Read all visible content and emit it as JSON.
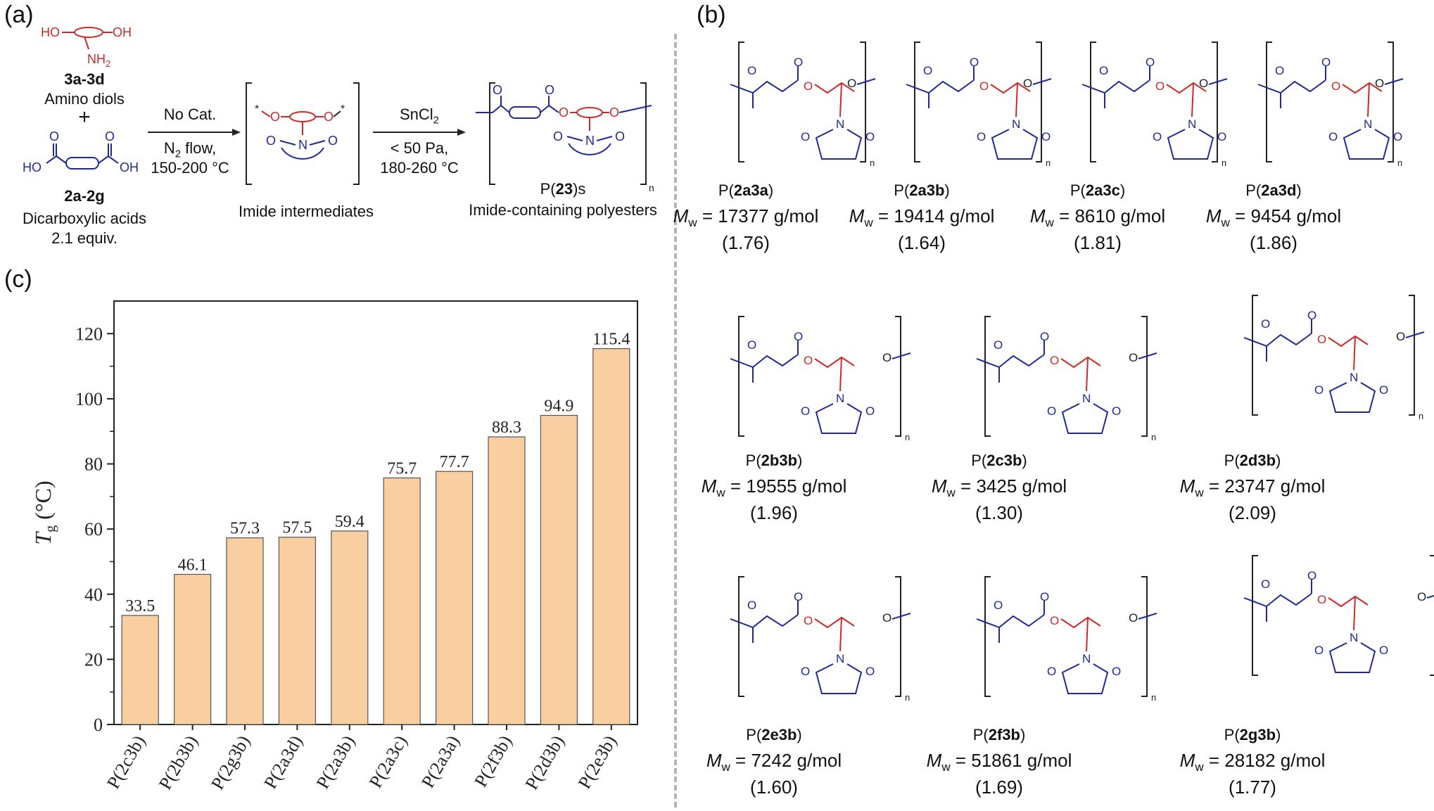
{
  "panels": {
    "a": "(a)",
    "b": "(b)",
    "c": "(c)"
  },
  "scheme": {
    "diol_code": "3a-3d",
    "diol_name": "Amino diols",
    "plus": "+",
    "acid_code": "2a-2g",
    "acid_name": "Dicarboxylic acids",
    "acid_equiv": "2.1 equiv.",
    "step1_line1": "No Cat.",
    "step1_line2": "N",
    "step1_line2_sub": "2",
    "step1_line2_rest": " flow,",
    "step1_line3": "150-200 °C",
    "intermediate": "Imide intermediates",
    "step2_line1": "SnCl",
    "step2_line1_sub": "2",
    "step2_line2": "< 50 Pa,",
    "step2_line3": "180-260 °C",
    "product_code_pre": "P(",
    "product_code_bold": "23",
    "product_code_post": ")s",
    "product_name": "Imide-containing polyesters",
    "atoms": {
      "HO": "HO",
      "OH": "OH",
      "NH2": "NH",
      "NH2_sub": "2",
      "O": "O",
      "N": "N",
      "star": "*",
      "n": "n"
    }
  },
  "polymers": [
    {
      "code": "2a3a",
      "mw": "17377 g/mol",
      "pdi": "(1.76)"
    },
    {
      "code": "2a3b",
      "mw": "19414 g/mol",
      "pdi": "(1.64)"
    },
    {
      "code": "2a3c",
      "mw": "8610 g/mol",
      "pdi": "(1.81)"
    },
    {
      "code": "2a3d",
      "mw": "9454 g/mol",
      "pdi": "(1.86)"
    },
    {
      "code": "2b3b",
      "mw": "19555 g/mol",
      "pdi": "(1.96)"
    },
    {
      "code": "2c3b",
      "mw": "3425 g/mol",
      "pdi": "(1.30)"
    },
    {
      "code": "2d3b",
      "mw": "23747 g/mol",
      "pdi": "(2.09)"
    },
    {
      "code": "2e3b",
      "mw": "7242 g/mol",
      "pdi": "(1.60)"
    },
    {
      "code": "2f3b",
      "mw": "51861 g/mol",
      "pdi": "(1.69)"
    },
    {
      "code": "2g3b",
      "mw": "28182 g/mol",
      "pdi": "(1.77)"
    }
  ],
  "mw_label": "M",
  "mw_sub": "w",
  "mw_eq": " = ",
  "cap_pre": "P(",
  "cap_post": ")",
  "chart_data": {
    "type": "bar",
    "categories": [
      "P(2c3b)",
      "P(2b3b)",
      "P(2g3b)",
      "P(2a3d)",
      "P(2a3b)",
      "P(2a3c)",
      "P(2a3a)",
      "P(2f3b)",
      "P(2d3b)",
      "P(2e3b)"
    ],
    "values": [
      33.5,
      46.1,
      57.3,
      57.5,
      59.4,
      75.7,
      77.7,
      88.3,
      94.9,
      115.4
    ],
    "value_labels": [
      "33.5",
      "46.1",
      "57.3",
      "57.5",
      "59.4",
      "75.7",
      "77.7",
      "88.3",
      "94.9",
      "115.4"
    ],
    "ylabel": "T",
    "ylabel_sub": "g",
    "ylabel_unit": " (°C)",
    "ylim": [
      0,
      130
    ],
    "yticks": [
      0,
      20,
      40,
      60,
      80,
      100,
      120
    ],
    "bar_color": "#f9cfa1",
    "grid": false
  },
  "colors": {
    "red": "#cc2a2a",
    "blue": "#1f2a99",
    "bar": "#f9cfa1"
  }
}
